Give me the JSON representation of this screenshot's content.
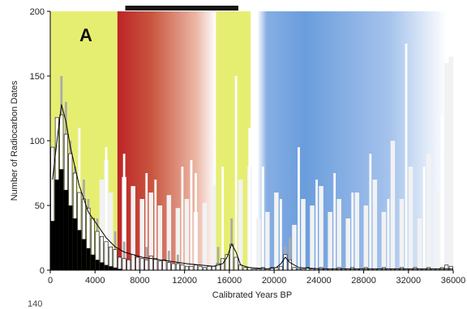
{
  "chart_data": {
    "type": "bar",
    "panel_label": "A",
    "xlabel": "Calibrated Years BP",
    "ylabel": "Number of Radiocarbon Dates",
    "xlim": [
      0,
      36000
    ],
    "ylim": [
      0,
      200
    ],
    "xticks": [
      0,
      4000,
      8000,
      12000,
      16000,
      20000,
      24000,
      28000,
      32000,
      36000
    ],
    "yticks": [
      0,
      50,
      100,
      150,
      200
    ],
    "bands": [
      {
        "name": "yellow-band-1",
        "start": 0,
        "end": 6000,
        "style": "solid",
        "color": "#e6ee72"
      },
      {
        "name": "red-band",
        "start": 6000,
        "end": 14800,
        "style": "fade-right",
        "color": "#c0292a"
      },
      {
        "name": "yellow-band-2",
        "start": 14800,
        "end": 17900,
        "style": "solid",
        "color": "#e6ee72"
      },
      {
        "name": "blue-band",
        "start": 18500,
        "end": 35400,
        "style": "fade-both",
        "color": "#5a8fd8"
      }
    ],
    "top_bar": {
      "start": 6700,
      "end": 16800
    },
    "bin_width": 400,
    "series": [
      {
        "name": "",
        "role": "black-base",
        "color": "#000000",
        "x": [
          0,
          400,
          800,
          1200,
          1600,
          2000,
          2400,
          2800,
          3200,
          3600,
          4000,
          4400,
          4800,
          5200,
          5600,
          6000
        ],
        "values": [
          38,
          70,
          78,
          62,
          50,
          40,
          31,
          24,
          17,
          12,
          8,
          6,
          4,
          3,
          2,
          1
        ]
      },
      {
        "name": "",
        "role": "gray-tall",
        "color": "#aaaaaa",
        "x": [
          800,
          1200,
          1600,
          2000,
          2800,
          3200,
          4000,
          5600,
          6400,
          8400,
          10400,
          11200,
          14800,
          16000,
          20800,
          21200
        ],
        "values": [
          150,
          130,
          100,
          80,
          70,
          55,
          40,
          30,
          22,
          18,
          15,
          12,
          18,
          40,
          18,
          25
        ]
      },
      {
        "name": "",
        "role": "white-outline-bars",
        "color": "#ffffff",
        "x": [
          0,
          400,
          800,
          1200,
          1600,
          2000,
          2400,
          2800,
          3200,
          3600,
          4000,
          4400,
          4800,
          5200,
          5600,
          6000,
          6400,
          6800,
          7200,
          7600,
          8000,
          8400,
          8800,
          9200,
          9600,
          10000,
          10400,
          10800,
          11200,
          11600,
          12000,
          12400,
          12800,
          13200,
          13600,
          14000,
          14400,
          14800,
          15200,
          15600,
          16000,
          16400,
          16800,
          17200,
          17600,
          18000,
          18400,
          18800,
          19200,
          19600,
          20000,
          20400,
          20800,
          21200,
          21600,
          22000,
          22400,
          22800,
          23200,
          23600,
          24000,
          24400,
          24800,
          25200,
          25600,
          26000,
          26400,
          26800,
          27200,
          27600,
          28000,
          28400,
          28800,
          29200,
          29600,
          30000,
          30400,
          30800,
          31200,
          31600,
          32000,
          32400,
          32800,
          33200,
          33600,
          34000,
          34400,
          34800,
          35200,
          35600
        ],
        "values": [
          95,
          118,
          120,
          105,
          90,
          75,
          60,
          55,
          48,
          40,
          30,
          26,
          22,
          18,
          16,
          10,
          9,
          8,
          12,
          10,
          9,
          8,
          11,
          9,
          7,
          8,
          6,
          5,
          5,
          4,
          3,
          3,
          4,
          3,
          2,
          3,
          3,
          5,
          9,
          12,
          20,
          10,
          4,
          2,
          2,
          1,
          1,
          2,
          1,
          2,
          2,
          3,
          12,
          8,
          2,
          1,
          1,
          2,
          1,
          1,
          2,
          1,
          1,
          1,
          2,
          1,
          1,
          2,
          1,
          1,
          2,
          1,
          1,
          1,
          2,
          1,
          1,
          1,
          2,
          1,
          1,
          2,
          1,
          1,
          2,
          1,
          1,
          2,
          4,
          3
        ]
      },
      {
        "name": "",
        "role": "light-gray-spikes",
        "color": "#f2f2f2",
        "x": [
          4400,
          4800,
          5200,
          6400,
          7200,
          8000,
          8800,
          9600,
          10400,
          11200,
          12000,
          12800,
          13600,
          14400,
          16800,
          17600,
          18400,
          19200,
          20000,
          21600,
          22400,
          23200,
          24000,
          24800,
          25600,
          26400,
          27200,
          28000,
          28800,
          29600,
          30400,
          31200,
          32000,
          32800,
          33600,
          34400,
          35200,
          35600
        ],
        "values": [
          70,
          85,
          60,
          72,
          65,
          55,
          60,
          50,
          58,
          48,
          55,
          45,
          52,
          66,
          70,
          80,
          40,
          45,
          60,
          35,
          55,
          50,
          65,
          45,
          55,
          40,
          60,
          50,
          70,
          45,
          100,
          55,
          80,
          40,
          90,
          60,
          160,
          165
        ]
      },
      {
        "name": "",
        "role": "white-spikes",
        "color": "#ffffff",
        "x": [
          2400,
          2800,
          4800,
          6400,
          8400,
          9200,
          11600,
          12400,
          12800,
          15200,
          16400,
          17600,
          18800,
          20400,
          22000,
          23600,
          25200,
          26800,
          28400,
          30000,
          31600,
          33200,
          34800
        ],
        "values": [
          110,
          60,
          95,
          90,
          75,
          70,
          80,
          85,
          75,
          80,
          150,
          110,
          80,
          55,
          95,
          70,
          75,
          60,
          90,
          55,
          175,
          80,
          120
        ]
      },
      {
        "name": "",
        "role": "smooth-line",
        "color": "#000000",
        "x": [
          0,
          400,
          800,
          1200,
          1600,
          2000,
          2400,
          2800,
          3200,
          3600,
          4000,
          4800,
          5600,
          6400,
          7200,
          8000,
          8800,
          9600,
          10400,
          11200,
          12000,
          13200,
          14400,
          15200,
          15600,
          16000,
          16400,
          16800,
          17600,
          19200,
          20000,
          20400,
          20800,
          21200,
          22000,
          24000,
          28000,
          32000,
          36000
        ],
        "values": [
          70,
          100,
          128,
          115,
          95,
          80,
          65,
          55,
          45,
          40,
          35,
          25,
          18,
          14,
          12,
          10,
          9,
          8,
          7,
          6,
          5,
          4,
          3,
          5,
          10,
          20,
          14,
          4,
          2,
          1,
          2,
          5,
          10,
          6,
          2,
          1,
          1,
          1,
          1
        ]
      }
    ]
  },
  "footer_text": "140"
}
